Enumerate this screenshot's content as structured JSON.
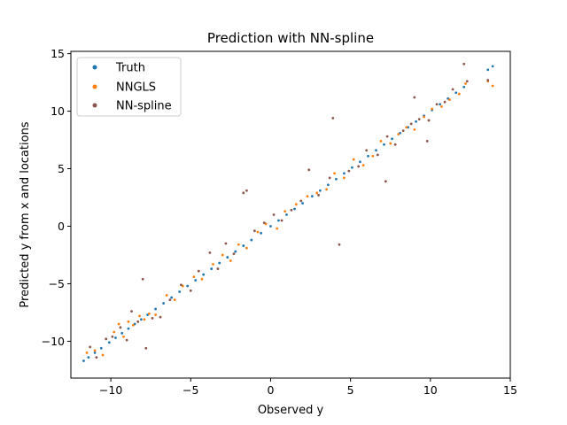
{
  "chart_data": {
    "type": "scatter",
    "title": "Prediction with NN-spline",
    "xlabel": "Observed y",
    "ylabel": "Predicted y from x and locations",
    "xlim": [
      -12.5,
      15
    ],
    "ylim": [
      -13.2,
      15.2
    ],
    "xticks": [
      -10,
      -5,
      0,
      5,
      10,
      15
    ],
    "yticks": [
      -10,
      -5,
      0,
      5,
      10,
      15
    ],
    "grid": false,
    "legend_position": "upper-left",
    "series": [
      {
        "name": "Truth",
        "color": "#1f77b4",
        "x": [
          -11.7,
          -11.4,
          -11.0,
          -10.6,
          -10.1,
          -9.7,
          -9.3,
          -8.9,
          -8.5,
          -8.1,
          -7.7,
          -7.2,
          -6.7,
          -6.2,
          -5.7,
          -5.2,
          -4.7,
          -4.2,
          -3.7,
          -3.2,
          -2.7,
          -2.2,
          -1.7,
          -1.2,
          -0.6,
          0.0,
          0.5,
          1.0,
          1.5,
          2.0,
          2.6,
          3.1,
          3.6,
          4.1,
          4.6,
          5.1,
          5.6,
          6.1,
          6.6,
          7.1,
          7.6,
          8.1,
          8.6,
          9.1,
          9.6,
          10.1,
          10.6,
          11.1,
          11.6,
          12.1,
          13.6,
          13.9
        ],
        "y": [
          -11.7,
          -11.4,
          -11.0,
          -10.6,
          -10.1,
          -9.7,
          -9.3,
          -8.9,
          -8.5,
          -8.1,
          -7.7,
          -7.2,
          -6.7,
          -6.2,
          -5.7,
          -5.2,
          -4.7,
          -4.2,
          -3.7,
          -3.2,
          -2.7,
          -2.2,
          -1.7,
          -1.2,
          -0.6,
          0.0,
          0.5,
          1.0,
          1.5,
          2.0,
          2.6,
          3.1,
          3.6,
          4.1,
          4.6,
          5.1,
          5.6,
          6.1,
          6.6,
          7.1,
          7.6,
          8.1,
          8.6,
          9.1,
          9.6,
          10.1,
          10.6,
          11.1,
          11.6,
          12.1,
          13.6,
          13.9
        ]
      },
      {
        "name": "NNGLS",
        "color": "#ff7f0e",
        "x": [
          -11.5,
          -11.0,
          -10.5,
          -9.8,
          -9.5,
          -9.2,
          -8.9,
          -8.6,
          -8.2,
          -7.9,
          -7.6,
          -7.2,
          -6.5,
          -6.0,
          -5.5,
          -4.8,
          -4.3,
          -3.6,
          -3.0,
          -2.5,
          -2.0,
          -1.5,
          -0.8,
          -0.3,
          0.4,
          0.9,
          1.6,
          2.3,
          2.9,
          3.5,
          4.0,
          4.6,
          5.2,
          5.8,
          6.4,
          6.9,
          7.5,
          8.0,
          8.5,
          9.0,
          9.6,
          10.1,
          10.7,
          11.2,
          11.8,
          12.2,
          13.6,
          13.9
        ],
        "y": [
          -11.0,
          -10.8,
          -11.2,
          -9.2,
          -8.5,
          -9.6,
          -8.3,
          -8.6,
          -7.8,
          -8.1,
          -7.6,
          -7.7,
          -6.0,
          -6.4,
          -5.2,
          -4.4,
          -4.6,
          -3.3,
          -2.5,
          -3.0,
          -1.6,
          -1.9,
          -0.5,
          0.2,
          -0.2,
          1.3,
          1.9,
          2.6,
          2.9,
          3.2,
          4.6,
          4.2,
          5.8,
          5.3,
          6.1,
          7.4,
          7.2,
          8.0,
          8.6,
          8.4,
          9.5,
          10.2,
          10.4,
          11.0,
          11.5,
          12.4,
          12.6,
          12.2
        ]
      },
      {
        "name": "NN-spline",
        "color": "#8c564b",
        "x": [
          -11.3,
          -10.9,
          -10.3,
          -9.9,
          -9.4,
          -9.0,
          -8.7,
          -8.3,
          -8.0,
          -7.8,
          -7.4,
          -6.9,
          -6.3,
          -5.6,
          -5.0,
          -4.5,
          -3.8,
          -3.3,
          -2.8,
          -2.3,
          -1.7,
          -1.0,
          -0.4,
          0.2,
          0.7,
          1.3,
          1.9,
          2.4,
          3.0,
          3.7,
          4.3,
          4.9,
          5.5,
          6.0,
          6.7,
          7.3,
          7.8,
          8.3,
          8.8,
          9.3,
          9.9,
          10.4,
          10.9,
          11.4,
          12.1,
          12.3,
          13.6,
          3.9,
          -1.5,
          7.2,
          9.0,
          9.8
        ],
        "y": [
          -10.5,
          -11.4,
          -9.8,
          -9.6,
          -8.8,
          -9.9,
          -7.4,
          -8.3,
          -4.6,
          -10.6,
          -8.0,
          -7.9,
          -6.4,
          -5.1,
          -5.6,
          -3.9,
          -2.3,
          -3.7,
          -1.5,
          -2.4,
          2.9,
          -0.4,
          0.3,
          1.0,
          0.5,
          1.4,
          2.2,
          4.9,
          2.7,
          4.2,
          -1.6,
          4.8,
          5.2,
          6.6,
          6.2,
          7.8,
          7.1,
          8.3,
          8.9,
          9.3,
          9.2,
          10.6,
          10.8,
          11.9,
          14.1,
          12.6,
          12.7,
          9.4,
          3.1,
          3.9,
          11.2,
          7.4
        ]
      }
    ]
  }
}
